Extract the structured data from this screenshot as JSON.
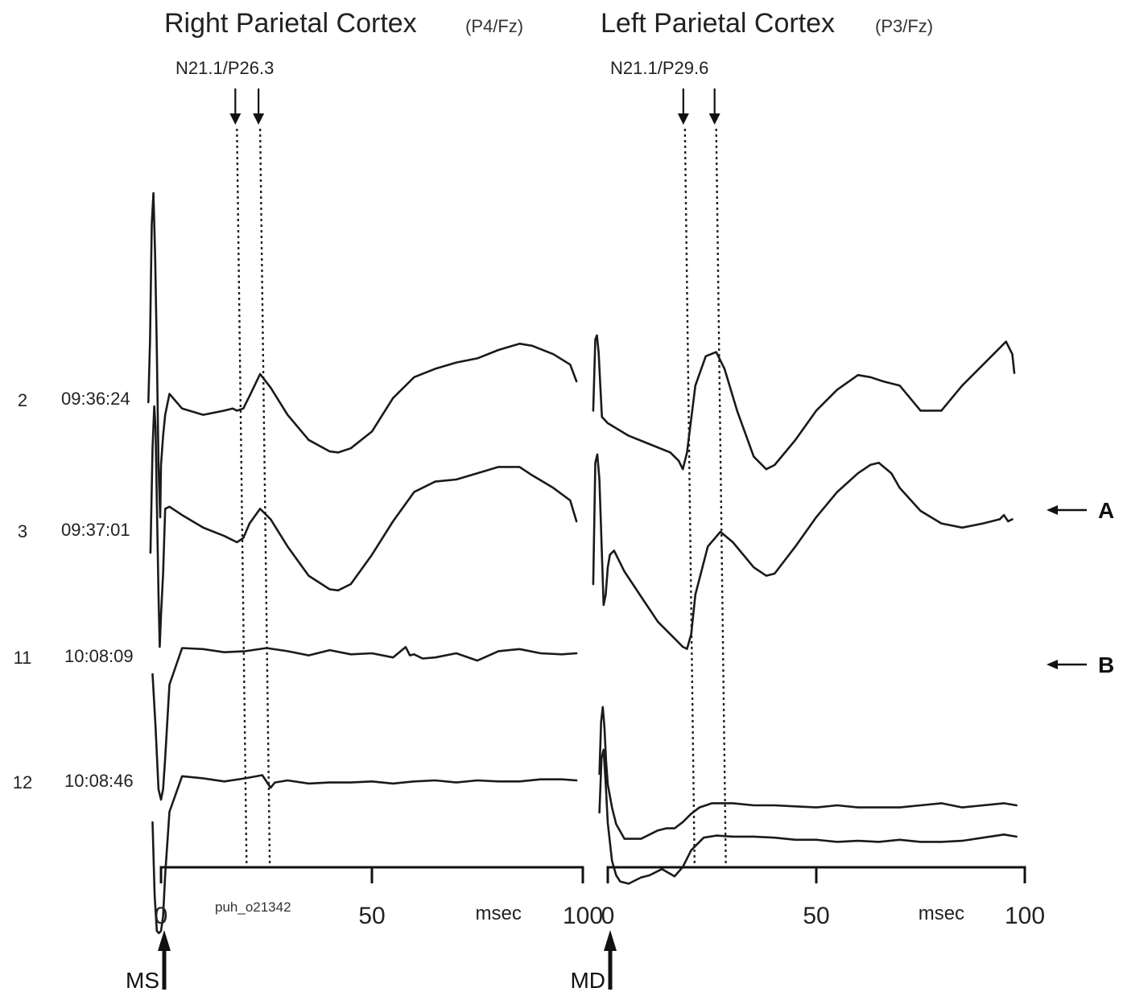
{
  "chart_data": [
    {
      "type": "line",
      "title": "Right Parietal Cortex",
      "title_sub": "(P4/Fz)",
      "peak_label": "N21.1/P26.3",
      "peak_markers_ms": [
        18,
        23.5
      ],
      "xlabel": "msec",
      "xlim": [
        0,
        100
      ],
      "x_ticks": [
        0,
        50,
        100
      ],
      "x_tick_labels": [
        "0",
        "50",
        "100"
      ],
      "stimulus_label": "MS",
      "image_id_text": "puh_o21342",
      "series": [
        {
          "name": "2",
          "time": "09:36:24",
          "x": [
            -3,
            -2.6,
            -2.2,
            -1.8,
            -1.4,
            -1,
            -0.6,
            -0.2,
            0,
            0.5,
            1,
            2,
            5,
            10,
            15,
            17,
            18,
            19.5,
            21,
            23.5,
            26,
            30,
            35,
            40,
            42,
            45,
            50,
            55,
            60,
            65,
            70,
            75,
            80,
            85,
            88,
            93,
            97,
            98.5
          ],
          "y": [
            0,
            3,
            8.5,
            10,
            7,
            2.5,
            -3,
            -5.5,
            -3,
            -1.6,
            -0.6,
            0.4,
            -0.3,
            -0.6,
            -0.4,
            -0.3,
            -0.4,
            -0.3,
            0.3,
            1.35,
            0.7,
            -0.6,
            -1.8,
            -2.35,
            -2.4,
            -2.2,
            -1.4,
            0.2,
            1.2,
            1.6,
            1.9,
            2.1,
            2.5,
            2.8,
            2.7,
            2.3,
            1.8,
            1.0
          ]
        },
        {
          "name": "3",
          "time": "09:37:01",
          "x": [
            -2.5,
            -2,
            -1.6,
            -1.3,
            -1,
            -0.6,
            -0.3,
            0,
            0.5,
            1,
            2,
            5,
            10,
            15,
            18,
            19.5,
            21,
            23.5,
            26,
            30,
            35,
            40,
            42,
            45,
            50,
            55,
            60,
            65,
            70,
            75,
            80,
            85,
            88,
            93,
            97,
            98.5
          ],
          "y": [
            -1.5,
            3.5,
            5.5,
            4.5,
            1,
            -3.5,
            -6,
            -4.5,
            -2.5,
            0.6,
            0.7,
            0.3,
            -0.3,
            -0.7,
            -1.0,
            -0.8,
            -0.1,
            0.6,
            0.1,
            -1.2,
            -2.6,
            -3.25,
            -3.3,
            -3.0,
            -1.6,
            0.0,
            1.4,
            1.9,
            2.0,
            2.3,
            2.6,
            2.6,
            2.2,
            1.6,
            1.0,
            0.0
          ]
        },
        {
          "name": "11",
          "time": "10:08:09",
          "x": [
            -2,
            -1.3,
            -0.6,
            0,
            0.5,
            1,
            2,
            5,
            10,
            15,
            20,
            25,
            30,
            35,
            40,
            45,
            50,
            55,
            58,
            59,
            60,
            62,
            65,
            70,
            75,
            80,
            85,
            90,
            95,
            98.5
          ],
          "y": [
            -1.0,
            -3.5,
            -6.5,
            -7,
            -6.5,
            -5,
            -1.5,
            0.25,
            0.2,
            0.05,
            0.1,
            0.25,
            0.1,
            -0.1,
            0.15,
            -0.05,
            0.0,
            -0.2,
            0.3,
            -0.1,
            -0.05,
            -0.25,
            -0.2,
            0.0,
            -0.35,
            0.1,
            0.2,
            0.0,
            -0.05,
            0.0
          ]
        },
        {
          "name": "12",
          "time": "10:08:46",
          "x": [
            -2,
            -1.5,
            -1,
            -0.5,
            0,
            0.5,
            1,
            2,
            5,
            10,
            15,
            20,
            24,
            26,
            27,
            30,
            35,
            40,
            45,
            50,
            55,
            60,
            65,
            70,
            75,
            80,
            85,
            90,
            95,
            98.5
          ],
          "y": [
            -2.0,
            -5.5,
            -7.2,
            -7.3,
            -7.2,
            -6.5,
            -4.5,
            -1.5,
            0.2,
            0.1,
            -0.05,
            0.1,
            0.25,
            -0.35,
            -0.1,
            0.0,
            -0.15,
            -0.1,
            -0.1,
            -0.05,
            -0.15,
            -0.05,
            0.0,
            -0.1,
            0.0,
            -0.05,
            -0.05,
            0.05,
            0.05,
            0.0
          ]
        }
      ]
    },
    {
      "type": "line",
      "title": "Left Parietal Cortex",
      "title_sub": "(P3/Fz)",
      "peak_label": "N21.1/P29.6",
      "peak_markers_ms": [
        18.5,
        26
      ],
      "xlabel": "msec",
      "xlim": [
        0,
        100
      ],
      "x_ticks": [
        0,
        50,
        100
      ],
      "x_tick_labels": [
        "0",
        "50",
        "100"
      ],
      "stimulus_label": "MD",
      "series": [
        {
          "name": "2",
          "time": "09:36:24",
          "x": [
            -3.5,
            -3,
            -2.6,
            -2.2,
            -1.8,
            -1.4,
            0,
            5,
            10,
            15,
            17,
            18,
            19,
            21,
            23.5,
            26,
            28,
            31,
            35,
            38,
            40,
            45,
            50,
            55,
            60,
            63,
            66,
            70,
            75,
            80,
            85,
            90,
            94,
            95.5,
            97,
            97.5
          ],
          "y": [
            -0.4,
            3.0,
            3.2,
            2.4,
            0.8,
            -0.7,
            -1.0,
            -1.6,
            -2.0,
            -2.4,
            -2.8,
            -3.2,
            -2.4,
            0.8,
            2.2,
            2.4,
            1.6,
            -0.4,
            -2.6,
            -3.2,
            -3.0,
            -1.8,
            -0.4,
            0.6,
            1.3,
            1.2,
            1.0,
            0.8,
            -0.4,
            -0.4,
            0.8,
            1.8,
            2.6,
            2.9,
            2.3,
            1.4
          ]
        },
        {
          "name": "3",
          "time": "09:37:01",
          "x": [
            -3.5,
            -3,
            -2.5,
            -2,
            -1.5,
            -1,
            -0.5,
            0,
            0.5,
            1.5,
            4,
            8,
            12,
            16,
            18,
            19,
            20,
            21,
            24,
            27,
            30,
            35,
            38,
            40,
            45,
            50,
            55,
            60,
            63,
            65,
            68,
            70,
            75,
            80,
            85,
            90,
            94,
            95,
            96,
            97
          ],
          "y": [
            -3,
            2.8,
            3.2,
            2.0,
            -1.0,
            -4.0,
            -3.5,
            -2.2,
            -1.6,
            -1.4,
            -2.4,
            -3.6,
            -4.8,
            -5.6,
            -6.0,
            -6.1,
            -5.4,
            -3.5,
            -1.2,
            -0.5,
            -1.0,
            -2.2,
            -2.6,
            -2.5,
            -1.2,
            0.2,
            1.4,
            2.3,
            2.7,
            2.8,
            2.3,
            1.6,
            0.5,
            -0.1,
            -0.3,
            -0.1,
            0.1,
            0.3,
            0.0,
            0.1
          ]
        },
        {
          "name": "11",
          "time": "10:08:09",
          "x": [
            -2,
            -1.6,
            -1.2,
            -0.8,
            -0.4,
            0,
            1,
            2,
            4,
            8,
            12,
            14,
            16,
            18,
            20,
            22,
            25,
            30,
            35,
            40,
            45,
            50,
            55,
            60,
            65,
            70,
            75,
            80,
            85,
            90,
            95,
            98
          ],
          "y": [
            -2.0,
            0.5,
            1.2,
            0.2,
            -1.4,
            -2.5,
            -3.6,
            -4.4,
            -5.1,
            -5.1,
            -4.7,
            -4.6,
            -4.6,
            -4.3,
            -3.9,
            -3.6,
            -3.4,
            -3.4,
            -3.5,
            -3.5,
            -3.55,
            -3.6,
            -3.5,
            -3.6,
            -3.6,
            -3.6,
            -3.5,
            -3.4,
            -3.6,
            -3.5,
            -3.4,
            -3.5
          ]
        },
        {
          "name": "12",
          "time": "10:08:46",
          "x": [
            -2,
            -1.5,
            -1,
            -0.5,
            0,
            1,
            2,
            3,
            5,
            8,
            10,
            13,
            16,
            18,
            20,
            23,
            26,
            30,
            35,
            40,
            45,
            50,
            55,
            60,
            65,
            70,
            75,
            80,
            85,
            90,
            95,
            98
          ],
          "y": [
            0.0,
            2.6,
            3.0,
            1.4,
            -0.5,
            -2.3,
            -3.0,
            -3.3,
            -3.4,
            -3.1,
            -3.0,
            -2.7,
            -3.05,
            -2.6,
            -1.8,
            -1.2,
            -1.1,
            -1.15,
            -1.15,
            -1.2,
            -1.3,
            -1.3,
            -1.4,
            -1.35,
            -1.4,
            -1.3,
            -1.4,
            -1.4,
            -1.35,
            -1.2,
            -1.05,
            -1.15
          ]
        }
      ]
    }
  ],
  "right_markers": {
    "A": "A",
    "B": "B"
  }
}
